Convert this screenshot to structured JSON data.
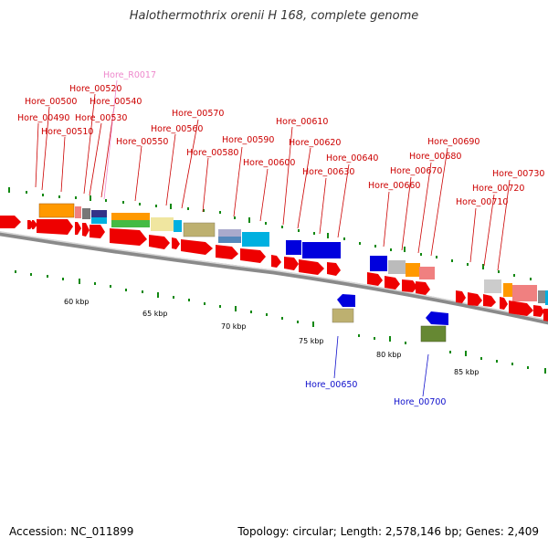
{
  "title": "Halothermothrix orenii H 168, complete genome",
  "footer": {
    "accession": "Accession: NC_011899",
    "summary": "Topology: circular; Length: 2,578,146 bp; Genes: 2,409"
  },
  "colors": {
    "cds_forward": "#ee0000",
    "label_top": "#cc0000",
    "label_rna": "#ee88cc",
    "label_bottom": "#1010cc",
    "backbone": "#888888",
    "tick": "#118811"
  },
  "scale_labels": [
    "60 kbp",
    "65 kbp",
    "70 kbp",
    "75 kbp",
    "80 kbp",
    "85 kbp"
  ],
  "gene_labels_top": [
    "Hore_R0017",
    "Hore_00520",
    "Hore_00500",
    "Hore_00540",
    "Hore_00490",
    "Hore_00530",
    "Hore_00510",
    "Hore_00570",
    "Hore_00560",
    "Hore_00550",
    "Hore_00610",
    "Hore_00590",
    "Hore_00580",
    "Hore_00620",
    "Hore_00600",
    "Hore_00640",
    "Hore_00630",
    "Hore_00690",
    "Hore_00680",
    "Hore_00670",
    "Hore_00660",
    "Hore_00730",
    "Hore_00720",
    "Hore_00710"
  ],
  "gene_labels_bottom": [
    "Hore_00650",
    "Hore_00700"
  ]
}
